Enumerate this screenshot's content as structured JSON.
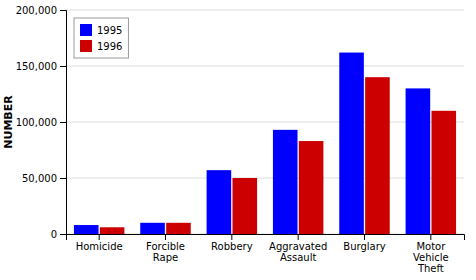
{
  "chart_data": {
    "type": "bar",
    "categories": [
      "Homicide",
      "Forcible\nRape",
      "Robbery",
      "Aggravated\nAssault",
      "Burglary",
      "Motor\nVehicle\nTheft"
    ],
    "series": [
      {
        "name": "1995",
        "color": "#0000FF",
        "values": [
          8000,
          10000,
          57000,
          93000,
          162000,
          130000
        ]
      },
      {
        "name": "1996",
        "color": "#CC0000",
        "values": [
          6000,
          10000,
          50000,
          83000,
          140000,
          110000
        ]
      }
    ],
    "ylabel": "NUMBER",
    "ylim": [
      0,
      200000
    ],
    "yticks": [
      0,
      {
        "value": 50000,
        "label": "50,000"
      },
      {
        "value": 100000,
        "label": "100,000"
      },
      {
        "value": 150000,
        "label": "150,000"
      },
      {
        "value": 200000,
        "label": "200,000"
      }
    ],
    "grid": true,
    "legend": "upper left"
  }
}
